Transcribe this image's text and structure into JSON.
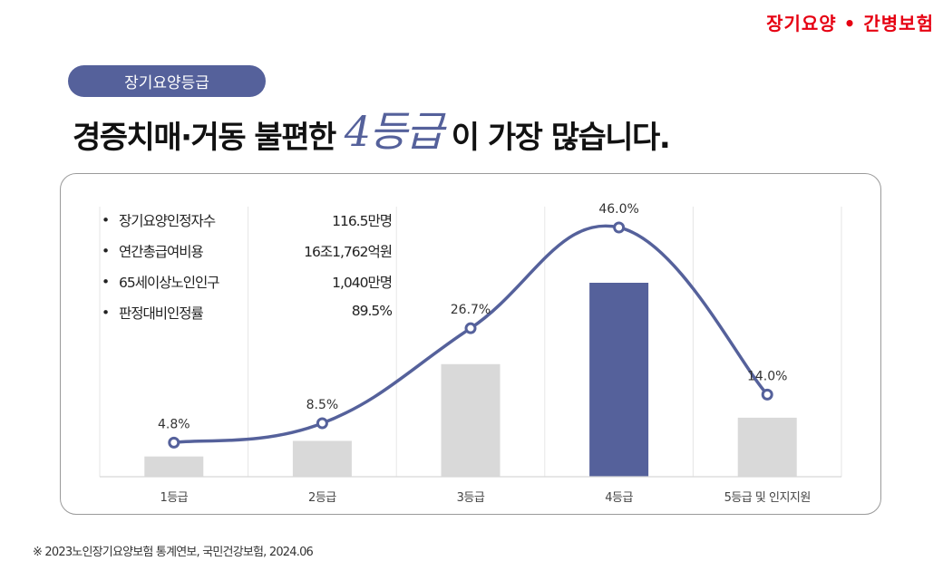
{
  "corner_title": "장기요양 • 간병보험",
  "pill_label": "장기요양등급",
  "headline": {
    "before": "경증치매·거동 불편한",
    "highlight": "4등급",
    "after": "이 가장 많습니다."
  },
  "stats": [
    {
      "bullet": "•",
      "label": "장기요양인정자수",
      "value": "116.5만명"
    },
    {
      "bullet": "•",
      "label": "연간총급여비용",
      "value": "16조1,762억원"
    },
    {
      "bullet": "•",
      "label": "65세이상노인인구",
      "value": "1,040만명"
    },
    {
      "bullet": "•",
      "label": "판정대비인정률",
      "value": "89.5%"
    }
  ],
  "chart_data": {
    "type": "bar",
    "categories": [
      "1등급",
      "2등급",
      "3등급",
      "4등급",
      "5등급 및 인지지원"
    ],
    "values": [
      4.8,
      8.5,
      26.7,
      46.0,
      14.0
    ],
    "data_labels": [
      "4.8%",
      "8.5%",
      "26.7%",
      "46.0%",
      "14.0%"
    ],
    "highlight_index": 3,
    "overlay": "smooth line with circle markers through the same values",
    "ylim": [
      0,
      50
    ],
    "grid": "vertical separators only",
    "colors": {
      "bar": "#d9d9d9",
      "bar_highlight": "#55619b",
      "line": "#55619b"
    }
  },
  "footnote": "※ 2023노인장기요양보험 통계연보, 국민건강보험, 2024.06"
}
